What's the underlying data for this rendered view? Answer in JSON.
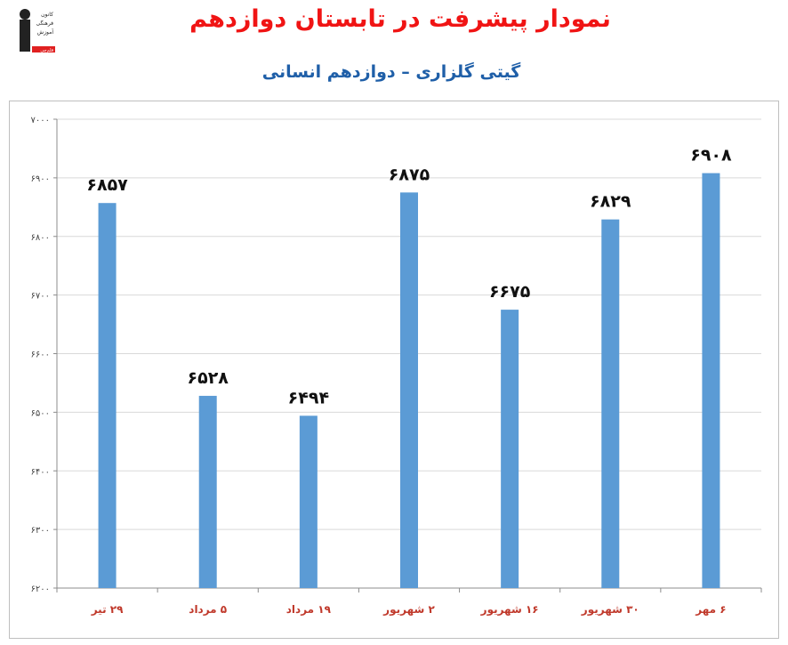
{
  "header": {
    "title": "نمودار پیشرفت در تابستان دوازدهم",
    "subtitle": "گیتی گلزاری – دوازدهم انسانی",
    "logo_text": [
      "کانون",
      "فرهنگی",
      "آموزش",
      "قلم‌چی"
    ]
  },
  "colors": {
    "bar": "#5b9bd5",
    "title": "#f01414",
    "subtitle": "#1f5fa8",
    "category_label": "#c0392b",
    "grid": "#d9d9d9"
  },
  "chart_data": {
    "type": "bar",
    "categories": [
      "۲۹ تیر",
      "۵ مرداد",
      "۱۹ مرداد",
      "۲ شهریور",
      "۱۶ شهریور",
      "۳۰ شهریور",
      "۶ مهر"
    ],
    "values": [
      6857,
      6528,
      6494,
      6875,
      6675,
      6829,
      6908
    ],
    "data_labels": [
      "۶۸۵۷",
      "۶۵۲۸",
      "۶۴۹۴",
      "۶۸۷۵",
      "۶۶۷۵",
      "۶۸۲۹",
      "۶۹۰۸"
    ],
    "ylim": [
      6200,
      7000
    ],
    "y_ticks": [
      6200,
      6300,
      6400,
      6500,
      6600,
      6700,
      6800,
      6900,
      7000
    ],
    "y_tick_labels": [
      "۶۲۰۰",
      "۶۳۰۰",
      "۶۴۰۰",
      "۶۵۰۰",
      "۶۶۰۰",
      "۶۷۰۰",
      "۶۸۰۰",
      "۶۹۰۰",
      "۷۰۰۰"
    ],
    "grid": true,
    "legend": "none"
  }
}
